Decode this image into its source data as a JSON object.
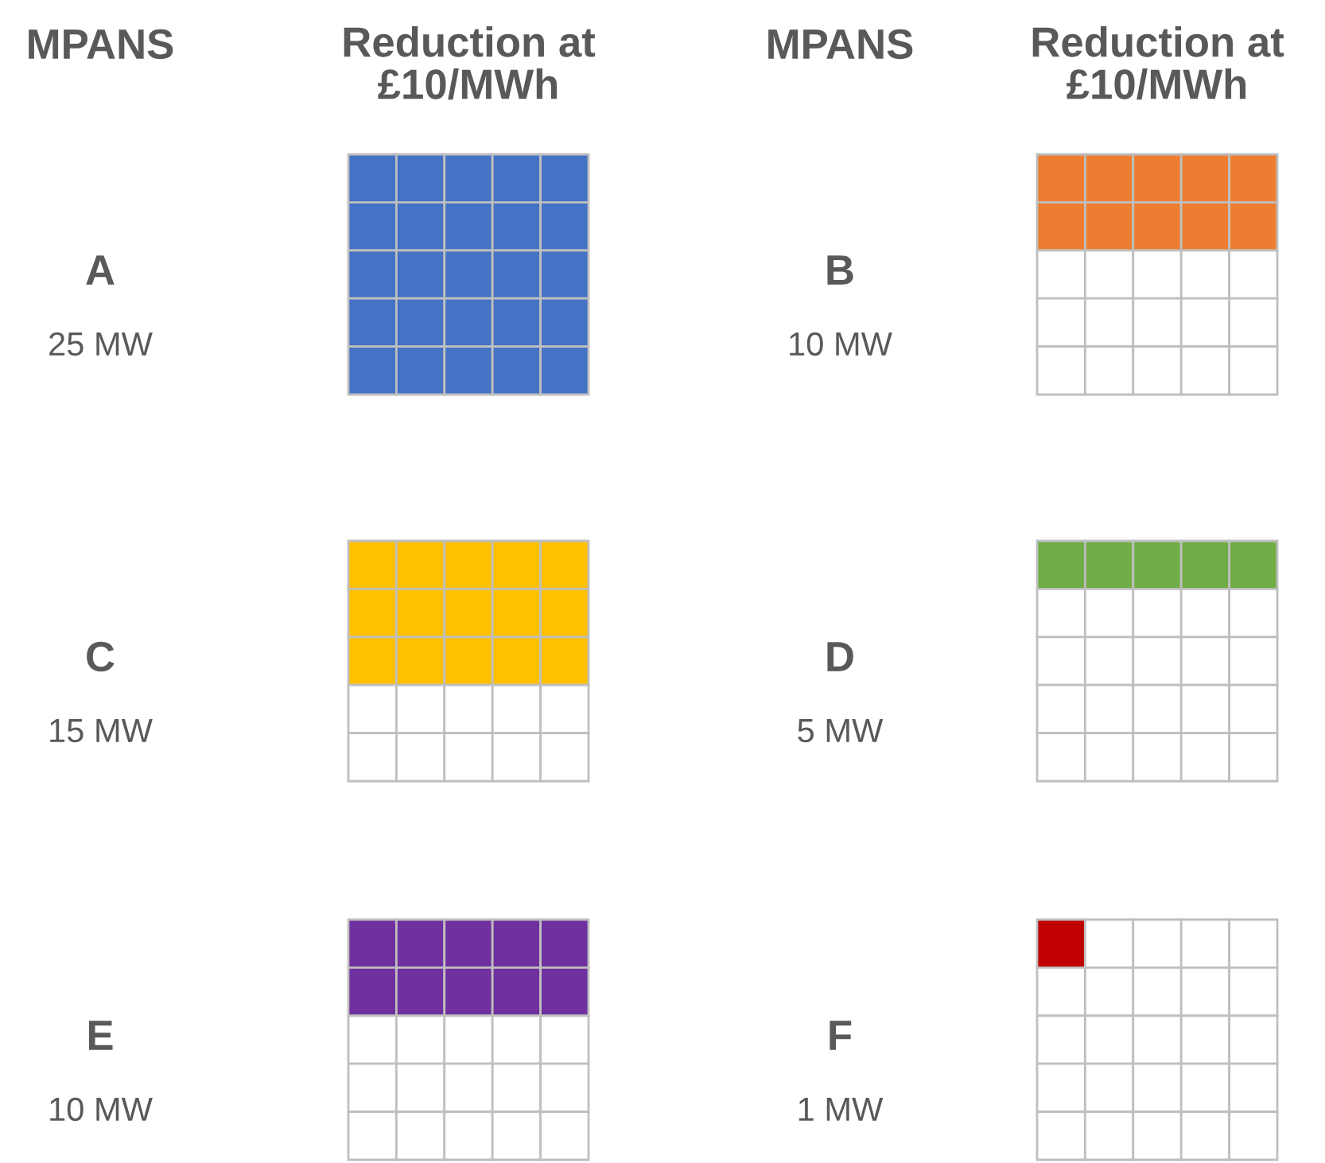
{
  "chart_data": {
    "type": "other",
    "annotations": [
      "MPANS",
      "Reduction at\n£10/MWh",
      "MPANS",
      "Reduction at\n£10/MWh"
    ],
    "categories": [
      "A",
      "B",
      "C",
      "D",
      "E",
      "F"
    ],
    "values": [
      25,
      10,
      15,
      5,
      10,
      1
    ],
    "value_labels": [
      "25 MW",
      "10 MW",
      "15 MW",
      "5 MW",
      "10 MW",
      "1 MW"
    ],
    "colors": [
      "#4472c4",
      "#ed7d31",
      "#ffc000",
      "#70ad47",
      "#7030a0",
      "#c00000"
    ]
  }
}
